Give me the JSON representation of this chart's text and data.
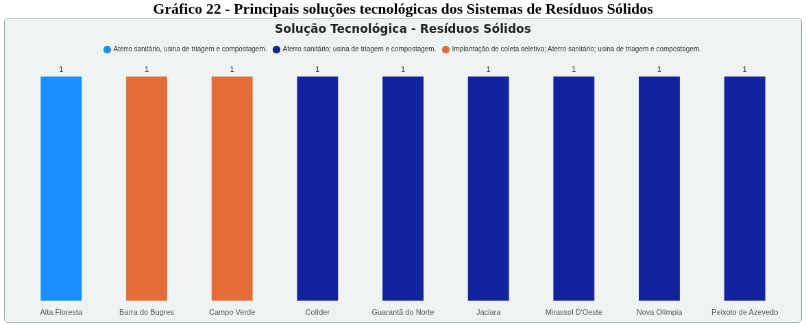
{
  "chart_data": {
    "type": "bar",
    "title": "Solução Tecnológica - Resíduos Sólidos",
    "annotations": [
      "Gráfico 22 - Principais soluções tecnológicas dos Sistemas de Resíduos Sólidos"
    ],
    "categories": [
      "Alta Floresta",
      "Barra do Bugres",
      "Campo Verde",
      "Colíder",
      "Guarantã do Norte",
      "Jaciara",
      "Mirassol D'Oeste",
      "Nova Olímpia",
      "Peixoto de Azevedo"
    ],
    "stacked": true,
    "series": [
      {
        "name": "Aterro sanitário, usina de triagem e compostagem.",
        "color": "#1a8fff",
        "values": [
          1,
          null,
          null,
          null,
          null,
          null,
          null,
          null,
          null
        ]
      },
      {
        "name": "Aterro sanitário; usina de triagem e compostagem.",
        "color": "#12239e",
        "values": [
          null,
          null,
          null,
          1,
          1,
          1,
          1,
          1,
          1
        ]
      },
      {
        "name": "Implantação de coleta seletiva; Aterro sanitário; usina de triagem e compostagem.",
        "color": "#e46c36",
        "values": [
          null,
          1,
          1,
          null,
          null,
          null,
          null,
          null,
          null
        ]
      }
    ],
    "data_labels": true,
    "legend": "top",
    "grid": false,
    "tick_labels": "x"
  }
}
